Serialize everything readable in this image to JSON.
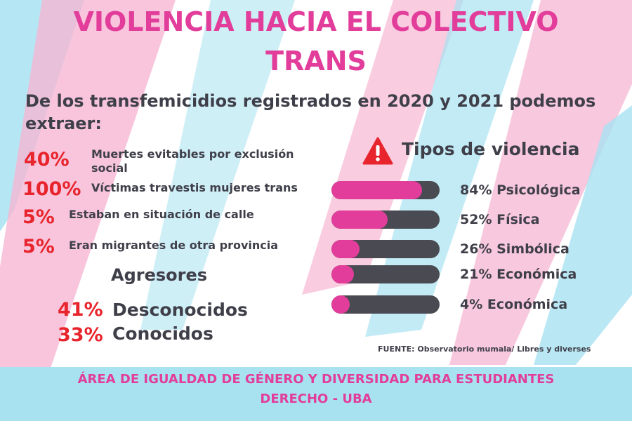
{
  "colors": {
    "pink": "#e23d9a",
    "red": "#e8242c",
    "dark": "#3f3f4a",
    "bar_track": "#4a4a52",
    "light_blue": "#a8e2f1",
    "light_pink": "#f6b6d3"
  },
  "title": {
    "line1": "VIOLENCIA HACIA EL COLECTIVO",
    "line2": "TRANS"
  },
  "intro": "De los transfemicidios registrados en 2020 y 2021 podemos extraer:",
  "stats": [
    {
      "pct": "40%",
      "label": "Muertes evitables por exclusión social"
    },
    {
      "pct": "100%",
      "label": "Víctimas travestis mujeres trans"
    },
    {
      "pct": "5%",
      "label": "Estaban en situación de calle"
    },
    {
      "pct": "5%",
      "label": "Eran migrantes de otra provincia"
    }
  ],
  "agresores": {
    "title": "Agresores",
    "items": [
      {
        "pct": "41%",
        "label": "Desconocidos"
      },
      {
        "pct": "33%",
        "label": "Conocidos"
      }
    ]
  },
  "tipos": {
    "icon": "warning-icon",
    "title": "Tipos de violencia",
    "items": [
      {
        "label": "84% Psicológica",
        "value": 84
      },
      {
        "label": "52% Física",
        "value": 52
      },
      {
        "label": "26% Simbólica",
        "value": 26
      },
      {
        "label": "21% Económica",
        "value": 21
      },
      {
        "label": "4% Económica",
        "value": 4
      }
    ]
  },
  "fuente": "FUENTE: Observatorio mumala/ Libres y diverses",
  "footer": {
    "line1": "ÁREA DE IGUALDAD DE GÉNERO Y DIVERSIDAD PARA ESTUDIANTES",
    "line2": "DERECHO - UBA"
  }
}
